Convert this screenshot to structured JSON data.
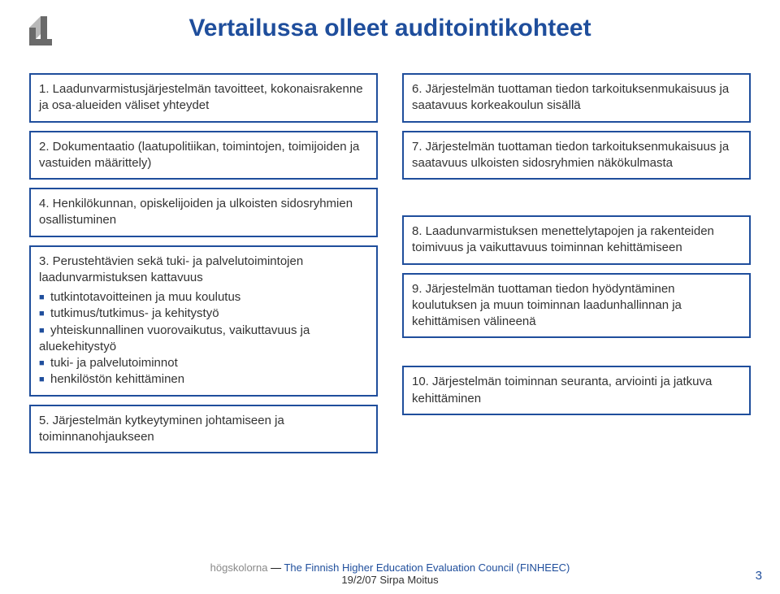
{
  "colors": {
    "accent": "#1f4e9c",
    "text": "#333333",
    "logo_fill": "#6a6a6a",
    "bullet": "#1f4e9c",
    "footer_org": "#888888",
    "footer_eng": "#1f4e9c",
    "page_num": "#1f4e9c"
  },
  "title": "Vertailussa olleet auditointikohteet",
  "left_boxes": [
    {
      "text": "1. Laadunvarmistusjärjestelmän tavoitteet, kokonaisrakenne ja osa-alueiden väliset yhteydet"
    },
    {
      "text": "2. Dokumentaatio (laatupolitiikan, toimintojen, toimijoiden ja vastuiden määrittely)"
    },
    {
      "text": "4. Henkilökunnan, opiskelijoiden ja ulkoisten sidosryhmien osallistuminen"
    },
    {
      "lead": "3. Perustehtävien sekä tuki- ja palvelutoimintojen laadunvarmistuksen kattavuus",
      "bullets": [
        "tutkintotavoitteinen ja muu koulutus",
        "tutkimus/tutkimus- ja kehitystyö",
        "yhteiskunnallinen vuorovaikutus, vaikuttavuus ja aluekehitystyö",
        "tuki- ja palvelutoiminnot",
        "henkilöstön kehittäminen"
      ]
    },
    {
      "text": "5. Järjestelmän kytkeytyminen johtamiseen ja toiminnanohjaukseen"
    }
  ],
  "right_boxes": [
    {
      "text": "6. Järjestelmän tuottaman tiedon tarkoituksenmukaisuus ja saatavuus korkeakoulun sisällä"
    },
    {
      "text": "7. Järjestelmän tuottaman tiedon tarkoituksenmukaisuus ja saatavuus ulkoisten sidosryhmien näkökulmasta"
    },
    {
      "text": "8. Laadunvarmistuksen menettelytapojen ja rakenteiden toimivuus ja vaikuttavuus toiminnan kehittämiseen"
    },
    {
      "text": "9. Järjestelmän tuottaman tiedon hyödyntäminen koulutuksen ja muun toiminnan laadunhallinnan ja kehittämisen välineenä"
    },
    {
      "text": "10. Järjestelmän toiminnan seuranta, arviointi ja jatkuva kehittäminen"
    }
  ],
  "footer": {
    "org_fragment": "högskolorna",
    "sep": " — ",
    "eng": "The Finnish Higher Education Evaluation Council (FINHEEC)",
    "line2": "19/2/07 Sirpa Moitus"
  },
  "page_number": "3"
}
